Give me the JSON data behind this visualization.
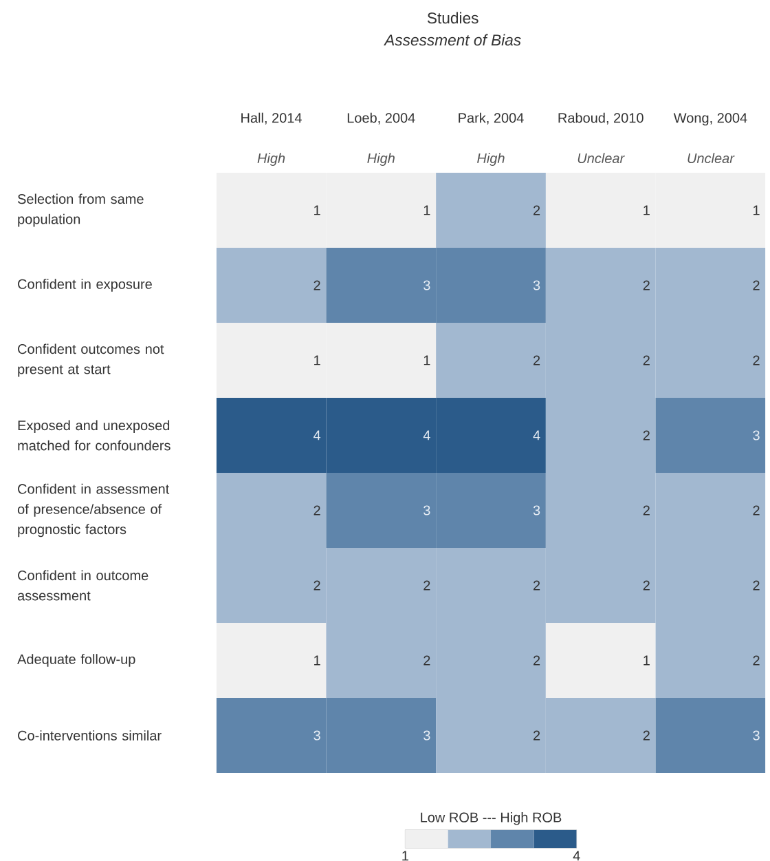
{
  "chart_data": {
    "type": "heatmap",
    "title": "Studies",
    "subtitle": "Assessment of Bias",
    "categories": [
      "Hall, 2014",
      "Loeb, 2004",
      "Park, 2004",
      "Raboud, 2010",
      "Wong, 2004"
    ],
    "y_categories": [
      "Selection from same population",
      "Confident in exposure",
      "Confident outcomes not present at start",
      "Exposed and unexposed matched for confounders",
      "Confident in assessment of presence/absence of prognostic factors",
      "Confident in outcome assessment",
      "Adequate follow-up",
      "Co-interventions similar"
    ],
    "cells": [
      [
        1,
        1,
        2,
        1,
        1
      ],
      [
        2,
        3,
        3,
        2,
        2
      ],
      [
        1,
        1,
        2,
        2,
        2
      ],
      [
        4,
        4,
        4,
        2,
        3
      ],
      [
        2,
        3,
        3,
        2,
        2
      ],
      [
        2,
        2,
        2,
        2,
        2
      ],
      [
        1,
        2,
        2,
        1,
        2
      ],
      [
        3,
        3,
        2,
        2,
        3
      ]
    ],
    "data_labels": true,
    "annotations": [
      "High",
      "High",
      "High",
      "Unclear",
      "Unclear"
    ],
    "clabel": "Low ROB --- High ROB",
    "clim": [
      1,
      4
    ],
    "cticks": [
      1,
      4
    ]
  }
}
